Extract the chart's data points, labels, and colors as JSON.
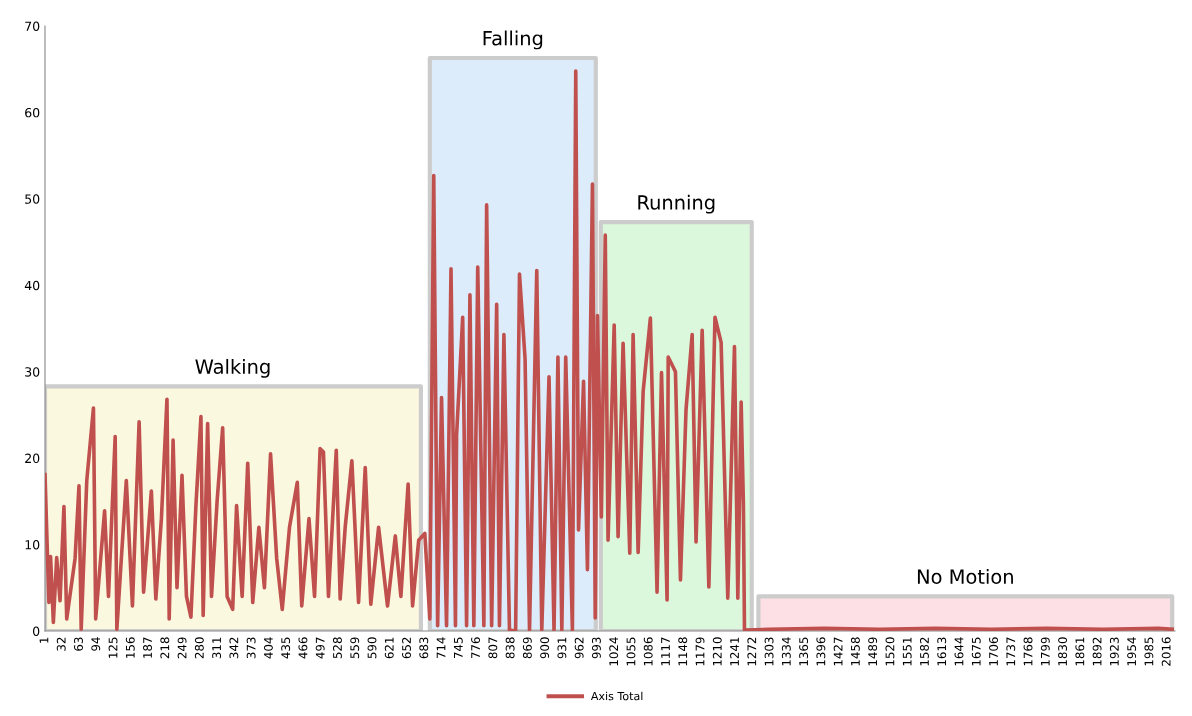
{
  "chart_data": {
    "type": "line",
    "legend": "bottom",
    "grid": false,
    "marker": "none",
    "line_style": "solid",
    "xlim": [
      1,
      2030
    ],
    "ylim": [
      0,
      70
    ],
    "yticks": [
      0,
      10,
      20,
      30,
      40,
      50,
      60,
      70
    ],
    "xticks": [
      1,
      32,
      63,
      94,
      125,
      156,
      187,
      218,
      249,
      280,
      311,
      342,
      373,
      404,
      435,
      466,
      497,
      528,
      559,
      590,
      621,
      652,
      683,
      714,
      745,
      776,
      807,
      838,
      869,
      900,
      931,
      962,
      993,
      1024,
      1055,
      1086,
      1117,
      1148,
      1179,
      1210,
      1241,
      1272,
      1303,
      1334,
      1365,
      1396,
      1427,
      1458,
      1489,
      1520,
      1551,
      1582,
      1613,
      1644,
      1675,
      1706,
      1737,
      1768,
      1799,
      1830,
      1861,
      1892,
      1923,
      1954,
      1985,
      2016
    ],
    "bands": [
      {
        "axis": "x",
        "from": 1,
        "to": 676,
        "label": "Walking",
        "color": "#fbf8e0"
      },
      {
        "axis": "x",
        "from": 692,
        "to": 990,
        "label": "Falling",
        "color": "#dcecfb"
      },
      {
        "axis": "x",
        "from": 999,
        "to": 1270,
        "label": "Running",
        "color": "#dcf8dc"
      },
      {
        "axis": "x",
        "from": 1282,
        "to": 2025,
        "label": "No Motion",
        "color": "#fde0e6"
      }
    ],
    "series": [
      {
        "name": "Axis Total",
        "color": "#c0504d",
        "x": [
          1,
          8,
          11,
          16,
          22,
          28,
          35,
          40,
          55,
          62,
          66,
          76,
          88,
          92,
          108,
          115,
          127,
          130,
          147,
          158,
          170,
          178,
          192,
          200,
          210,
          220,
          224,
          231,
          238,
          247,
          255,
          263,
          272,
          281,
          285,
          293,
          300,
          310,
          320,
          328,
          338,
          345,
          355,
          365,
          374,
          385,
          395,
          406,
          417,
          427,
          440,
          454,
          462,
          475,
          485,
          495,
          501,
          510,
          524,
          531,
          540,
          552,
          564,
          576,
          586,
          600,
          616,
          630,
          640,
          653,
          661,
          672,
          683,
          692,
          699,
          706,
          713,
          722,
          730,
          738,
          740,
          751,
          758,
          764,
          771,
          778,
          789,
          794,
          803,
          812,
          817,
          825,
          835,
          846,
          853,
          863,
          871,
          884,
          893,
          906,
          915,
          922,
          929,
          936,
          948,
          954,
          959,
          968,
          975,
          984,
          989,
          993,
          1000,
          1007,
          1012,
          1023,
          1030,
          1039,
          1051,
          1057,
          1066,
          1075,
          1088,
          1100,
          1108,
          1118,
          1120,
          1133,
          1142,
          1152,
          1163,
          1170,
          1181,
          1193,
          1204,
          1215,
          1227,
          1239,
          1245,
          1251,
          1255,
          1257,
          1300,
          1400,
          1500,
          1600,
          1700,
          1800,
          1900,
          2000,
          2025
        ],
        "values": [
          18.1,
          3.3,
          8.6,
          1.0,
          8.5,
          3.5,
          14.4,
          1.4,
          8.4,
          16.8,
          0.2,
          17.4,
          25.8,
          1.4,
          13.9,
          4.0,
          22.5,
          0.2,
          17.4,
          2.9,
          24.2,
          4.5,
          16.2,
          3.7,
          13.0,
          26.8,
          1.4,
          22.1,
          5.0,
          18.0,
          4.0,
          1.6,
          14.5,
          24.8,
          1.8,
          24.0,
          4.0,
          15.0,
          23.5,
          4.0,
          2.5,
          14.5,
          4.0,
          19.4,
          3.3,
          12.0,
          5.0,
          20.5,
          8.4,
          2.5,
          12.0,
          17.2,
          2.9,
          13.0,
          4.0,
          21.1,
          20.7,
          4.0,
          20.9,
          3.7,
          12.0,
          19.7,
          3.3,
          18.9,
          3.1,
          12.0,
          2.9,
          11.0,
          4.0,
          17.0,
          2.9,
          10.5,
          11.3,
          1.4,
          52.7,
          0.6,
          27.0,
          0.6,
          41.9,
          0.6,
          22.6,
          36.3,
          0.6,
          38.9,
          0.6,
          42.1,
          0.6,
          49.3,
          0.6,
          37.8,
          0.6,
          34.3,
          0.1,
          0.0,
          41.3,
          31.5,
          0.1,
          41.7,
          0.1,
          29.4,
          0.1,
          31.7,
          0.1,
          31.7,
          0.1,
          64.8,
          11.7,
          28.9,
          7.1,
          51.7,
          1.5,
          36.5,
          13.2,
          45.8,
          10.5,
          35.4,
          10.9,
          33.3,
          9.0,
          34.3,
          9.1,
          27.7,
          36.2,
          4.5,
          29.9,
          3.6,
          31.7,
          30.0,
          5.9,
          25.6,
          34.3,
          10.3,
          34.8,
          5.1,
          36.3,
          33.4,
          3.8,
          32.9,
          3.8,
          26.5,
          14.8,
          0.1,
          0.2,
          0.3,
          0.2,
          0.3,
          0.2,
          0.3,
          0.2,
          0.3,
          0.2
        ]
      }
    ]
  }
}
